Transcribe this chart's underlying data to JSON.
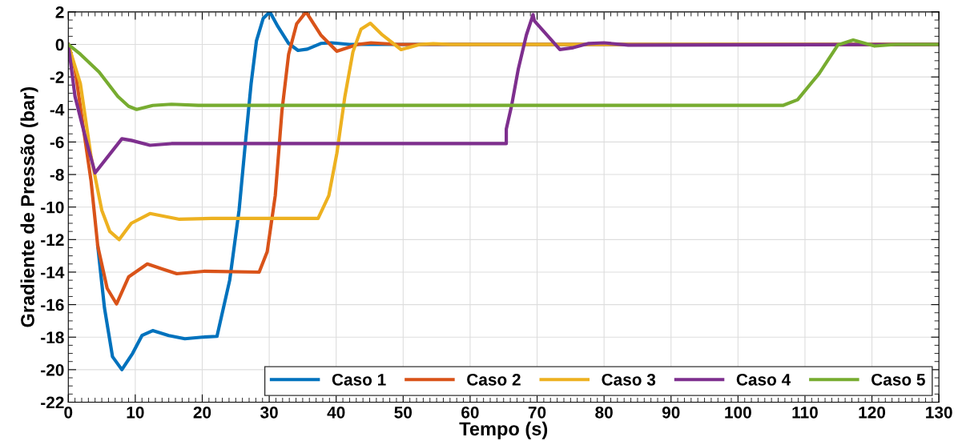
{
  "chart_data": {
    "type": "line",
    "xlabel": "Tempo (s)",
    "ylabel": "Gradiente de Pressão (bar)",
    "xlim": [
      0,
      130
    ],
    "xticks": [
      0,
      10,
      20,
      30,
      40,
      50,
      60,
      70,
      80,
      90,
      100,
      110,
      120,
      130
    ],
    "ylim": [
      -22,
      2
    ],
    "yticks": [
      -22,
      -20,
      -18,
      -16,
      -14,
      -12,
      -10,
      -8,
      -6,
      -4,
      -2,
      0,
      2
    ],
    "grid": true,
    "legend": "bottom right",
    "marker": "none",
    "line_style": "solid",
    "series": [
      {
        "name": "Caso 1",
        "color": "#0072bd",
        "x": [
          4.4,
          5.4,
          6.6,
          8.0,
          9.6,
          11.0,
          12.6,
          15.0,
          17.4,
          20.0,
          22.2,
          24.1,
          25.5,
          26.5,
          27.3,
          28.1,
          29.1,
          30.1,
          31.3,
          32.9,
          34.3,
          35.7,
          37.7,
          39.3,
          42,
          130
        ],
        "values": [
          -12.4,
          -16.2,
          -19.2,
          -20.0,
          -19.0,
          -17.9,
          -17.6,
          -17.9,
          -18.1,
          -18.0,
          -17.95,
          -14.5,
          -10.2,
          -5.8,
          -2.4,
          0.23,
          1.6,
          2.0,
          1.1,
          0.06,
          -0.37,
          -0.29,
          0.06,
          0.1,
          0,
          0
        ]
      },
      {
        "name": "Caso 2",
        "color": "#d95319",
        "x": [
          0,
          1.0,
          2.2,
          3.4,
          4.4,
          5.8,
          7.2,
          9.0,
          11.8,
          14.0,
          16.2,
          20.2,
          28.5,
          29.7,
          30.9,
          31.9,
          32.9,
          34.1,
          35.5,
          37.7,
          40.1,
          43.2,
          45.2,
          49.2,
          130
        ],
        "values": [
          0,
          -1.5,
          -5.0,
          -8.4,
          -12.4,
          -15.0,
          -15.96,
          -14.3,
          -13.5,
          -13.8,
          -14.1,
          -13.95,
          -14.0,
          -12.75,
          -9.3,
          -4.1,
          -0.6,
          1.27,
          2.0,
          0.58,
          -0.42,
          0.0,
          0.1,
          0,
          0
        ]
      },
      {
        "name": "Caso 3",
        "color": "#edb120",
        "x": [
          0,
          1.8,
          3.4,
          5.0,
          6.2,
          7.6,
          9.4,
          12.2,
          16.6,
          21.4,
          37.3,
          38.9,
          40.1,
          41.3,
          42.5,
          43.7,
          45.1,
          46.9,
          49.7,
          52.5,
          54.5,
          57,
          130
        ],
        "values": [
          0,
          -2.4,
          -6.9,
          -10.2,
          -11.5,
          -12.0,
          -11.0,
          -10.4,
          -10.75,
          -10.7,
          -10.7,
          -9.3,
          -6.7,
          -3.2,
          -0.46,
          0.93,
          1.3,
          0.58,
          -0.32,
          0,
          0.05,
          0,
          0
        ]
      },
      {
        "name": "Caso 4",
        "color": "#7e2f8e",
        "x": [
          0,
          1.0,
          2.6,
          4.0,
          8.0,
          9.4,
          12.2,
          15.4,
          65.4,
          65.4,
          66.2,
          67.2,
          68.4,
          69.4,
          69.6,
          73.4,
          75.4,
          77.7,
          80.0,
          83.6,
          130
        ],
        "values": [
          0,
          -3.2,
          -5.8,
          -7.9,
          -5.8,
          -5.9,
          -6.2,
          -6.1,
          -6.1,
          -5.2,
          -3.75,
          -1.5,
          0.58,
          1.83,
          1.45,
          -0.31,
          -0.2,
          0.06,
          0.1,
          -0.04,
          0
        ]
      },
      {
        "name": "Caso 5",
        "color": "#77ac30",
        "x": [
          0,
          1.8,
          4.6,
          7.4,
          9.0,
          10.2,
          12.6,
          15.4,
          19.4,
          106.7,
          108.9,
          112.1,
          114.9,
          117.2,
          120.4,
          123.6,
          130
        ],
        "values": [
          0,
          -0.6,
          -1.7,
          -3.2,
          -3.8,
          -4.0,
          -3.75,
          -3.68,
          -3.75,
          -3.75,
          -3.4,
          -1.8,
          -0.04,
          0.27,
          -0.1,
          0,
          0
        ]
      }
    ]
  }
}
